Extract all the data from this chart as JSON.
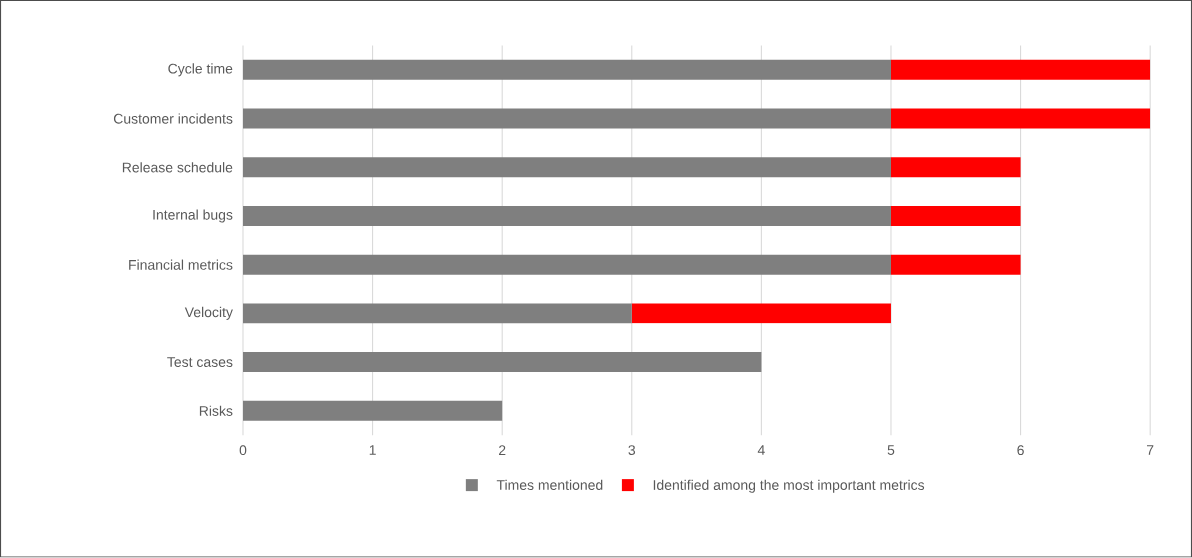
{
  "chart_data": {
    "type": "bar",
    "orientation": "horizontal",
    "stacked": true,
    "categories": [
      "Cycle time",
      "Customer incidents",
      "Release schedule",
      "Internal bugs",
      "Financial metrics",
      "Velocity",
      "Test cases",
      "Risks"
    ],
    "series": [
      {
        "name": "Times mentioned",
        "color": "#7f7f7f",
        "values": [
          5,
          5,
          5,
          5,
          5,
          3,
          4,
          2
        ]
      },
      {
        "name": "Identified among the most important metrics",
        "color": "#ff0000",
        "values": [
          2,
          2,
          1,
          1,
          1,
          2,
          null,
          null
        ]
      }
    ],
    "xlim": [
      0,
      7
    ],
    "xticks": [
      0,
      1,
      2,
      3,
      4,
      5,
      6,
      7
    ],
    "grid": "x",
    "legend": "bottom"
  }
}
